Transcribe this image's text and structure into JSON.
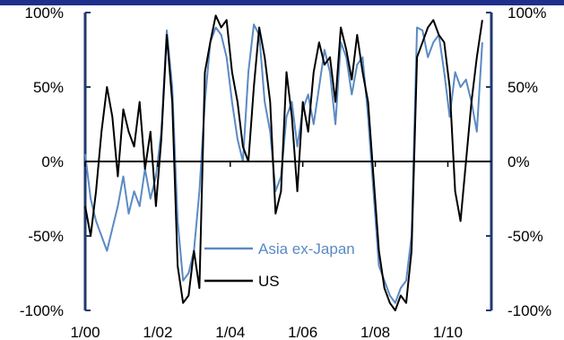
{
  "chart_data": {
    "type": "line",
    "title": "",
    "xlabel": "",
    "ylabel": "",
    "ylim": [
      -100,
      100
    ],
    "y_ticks": [
      "100%",
      "50%",
      "0%",
      "-50%",
      "-100%"
    ],
    "y_tick_values": [
      100,
      50,
      0,
      -50,
      -100
    ],
    "x_ticks": [
      "1/00",
      "1/02",
      "1/04",
      "1/06",
      "1/08",
      "1/10"
    ],
    "x_tick_values": [
      2000,
      2002,
      2004,
      2006,
      2008,
      2010
    ],
    "xlim": [
      2000,
      2011.2
    ],
    "grid": false,
    "legend_position": "lower-center",
    "colors": {
      "Asia ex-Japan": "#5b8ac3",
      "US": "#000000",
      "axes": "#1f3a6e",
      "top_bar": "#1f2f8c"
    },
    "series": [
      {
        "name": "Asia ex-Japan",
        "x": [
          2000.0,
          2000.15,
          2000.3,
          2000.45,
          2000.6,
          2000.75,
          2000.9,
          2001.05,
          2001.2,
          2001.35,
          2001.5,
          2001.65,
          2001.8,
          2001.95,
          2002.1,
          2002.25,
          2002.4,
          2002.55,
          2002.7,
          2002.85,
          2003.0,
          2003.15,
          2003.3,
          2003.45,
          2003.6,
          2003.75,
          2003.9,
          2004.05,
          2004.2,
          2004.35,
          2004.5,
          2004.65,
          2004.8,
          2004.95,
          2005.1,
          2005.25,
          2005.4,
          2005.55,
          2005.7,
          2005.85,
          2006.0,
          2006.15,
          2006.3,
          2006.45,
          2006.6,
          2006.75,
          2006.9,
          2007.05,
          2007.2,
          2007.35,
          2007.5,
          2007.65,
          2007.8,
          2007.95,
          2008.1,
          2008.25,
          2008.4,
          2008.55,
          2008.7,
          2008.85,
          2009.0,
          2009.15,
          2009.3,
          2009.45,
          2009.6,
          2009.75,
          2009.9,
          2010.05,
          2010.2,
          2010.35,
          2010.5,
          2010.65,
          2010.8,
          2010.95
        ],
        "values": [
          5,
          -25,
          -40,
          -50,
          -60,
          -45,
          -30,
          -10,
          -35,
          -20,
          -30,
          -5,
          -25,
          -10,
          20,
          88,
          50,
          -40,
          -80,
          -75,
          -60,
          -20,
          40,
          80,
          90,
          85,
          70,
          40,
          15,
          0,
          60,
          92,
          85,
          40,
          20,
          -20,
          -10,
          30,
          40,
          10,
          35,
          45,
          25,
          50,
          75,
          60,
          25,
          80,
          70,
          45,
          65,
          70,
          30,
          -20,
          -70,
          -80,
          -90,
          -95,
          -85,
          -80,
          -50,
          90,
          88,
          70,
          80,
          85,
          60,
          30,
          60,
          50,
          55,
          40,
          20,
          80
        ]
      },
      {
        "name": "US",
        "x": [
          2000.0,
          2000.15,
          2000.3,
          2000.45,
          2000.6,
          2000.75,
          2000.9,
          2001.05,
          2001.2,
          2001.35,
          2001.5,
          2001.65,
          2001.8,
          2001.95,
          2002.1,
          2002.25,
          2002.4,
          2002.55,
          2002.7,
          2002.85,
          2003.0,
          2003.15,
          2003.3,
          2003.45,
          2003.6,
          2003.75,
          2003.9,
          2004.05,
          2004.2,
          2004.35,
          2004.5,
          2004.65,
          2004.8,
          2004.95,
          2005.1,
          2005.25,
          2005.4,
          2005.55,
          2005.7,
          2005.85,
          2006.0,
          2006.15,
          2006.3,
          2006.45,
          2006.6,
          2006.75,
          2006.9,
          2007.05,
          2007.2,
          2007.35,
          2007.5,
          2007.65,
          2007.8,
          2007.95,
          2008.1,
          2008.25,
          2008.4,
          2008.55,
          2008.7,
          2008.85,
          2009.0,
          2009.15,
          2009.3,
          2009.45,
          2009.6,
          2009.75,
          2009.9,
          2010.05,
          2010.2,
          2010.35,
          2010.5,
          2010.65,
          2010.8,
          2010.95
        ],
        "values": [
          -30,
          -50,
          -20,
          20,
          50,
          30,
          -10,
          35,
          20,
          10,
          40,
          -5,
          20,
          -30,
          15,
          85,
          40,
          -70,
          -95,
          -90,
          -60,
          -85,
          60,
          80,
          98,
          90,
          95,
          60,
          40,
          10,
          0,
          50,
          90,
          70,
          40,
          -35,
          -20,
          60,
          30,
          -20,
          40,
          20,
          60,
          80,
          65,
          70,
          40,
          90,
          75,
          55,
          85,
          60,
          40,
          -10,
          -60,
          -85,
          -95,
          -100,
          -90,
          -95,
          -60,
          70,
          80,
          90,
          95,
          85,
          80,
          50,
          -20,
          -40,
          0,
          40,
          70,
          95
        ]
      }
    ]
  }
}
